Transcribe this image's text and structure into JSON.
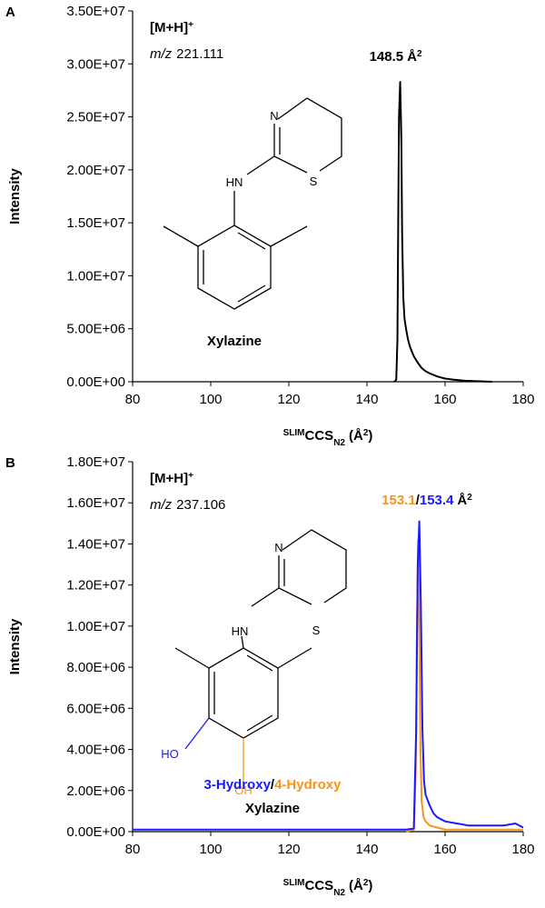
{
  "chart_data": [
    {
      "type": "line",
      "panel": "A",
      "ion": {
        "text": "[M+H]",
        "sup": "+"
      },
      "mz": {
        "label": "m/z",
        "value": "221.111"
      },
      "peak_label": {
        "value": 148.5,
        "unit": "Å",
        "unit_sup": "2"
      },
      "compound": "Xylazine",
      "structure": {
        "atoms": [
          "N",
          "HN",
          "S"
        ]
      },
      "ylabel": "Intensity",
      "xlabel": {
        "sup": "SLIM",
        "main": "CCS",
        "sub": "N2",
        "unit": "(Å",
        "unit_sup": "2",
        "close": ")"
      },
      "xlim": [
        80,
        180
      ],
      "xticks": [
        80,
        100,
        120,
        140,
        160,
        180
      ],
      "ylim": [
        0,
        35000000
      ],
      "yticks": [
        {
          "value": 0,
          "label": "0.00E+00"
        },
        {
          "value": 5000000,
          "label": "5.00E+06"
        },
        {
          "value": 10000000,
          "label": "1.00E+07"
        },
        {
          "value": 15000000,
          "label": "1.50E+07"
        },
        {
          "value": 20000000,
          "label": "2.00E+07"
        },
        {
          "value": 25000000,
          "label": "2.50E+07"
        },
        {
          "value": 30000000,
          "label": "3.00E+07"
        },
        {
          "value": 35000000,
          "label": "3.50E+07"
        }
      ],
      "series": [
        {
          "color": "#000000",
          "x": [
            147,
            147.5,
            147.8,
            148.0,
            148.2,
            148.5,
            148.8,
            149.0,
            149.3,
            149.6,
            150,
            150.5,
            151,
            152,
            153,
            154,
            155,
            156,
            158,
            160,
            162,
            165,
            168,
            172
          ],
          "values": [
            0,
            200000,
            4000000,
            15000000,
            25000000,
            28300000,
            23000000,
            14000000,
            8000000,
            6000000,
            5000000,
            4000000,
            3300000,
            2400000,
            1800000,
            1300000,
            1000000,
            800000,
            500000,
            300000,
            200000,
            100000,
            50000,
            0
          ]
        }
      ]
    },
    {
      "type": "line",
      "panel": "B",
      "ion": {
        "text": "[M+H]",
        "sup": "+"
      },
      "mz": {
        "label": "m/z",
        "value": "237.106"
      },
      "peak_label": {
        "separator": "/",
        "unit": "Å",
        "unit_sup": "2"
      },
      "name_separator": "/",
      "compound": "Xylazine",
      "structure": {
        "atoms": [
          "N",
          "HN",
          "S",
          "HO",
          "OH"
        ]
      },
      "ylabel": "Intensity",
      "xlabel": {
        "sup": "SLIM",
        "main": "CCS",
        "sub": "N2",
        "unit": "(Å",
        "unit_sup": "2",
        "close": ")"
      },
      "xlim": [
        80,
        180
      ],
      "xticks": [
        80,
        100,
        120,
        140,
        160,
        180
      ],
      "ylim": [
        0,
        18000000
      ],
      "yticks": [
        {
          "value": 0,
          "label": "0.00E+00"
        },
        {
          "value": 2000000,
          "label": "2.00E+06"
        },
        {
          "value": 4000000,
          "label": "4.00E+06"
        },
        {
          "value": 6000000,
          "label": "6.00E+06"
        },
        {
          "value": 8000000,
          "label": "8.00E+06"
        },
        {
          "value": 10000000,
          "label": "1.00E+07"
        },
        {
          "value": 12000000,
          "label": "1.20E+07"
        },
        {
          "value": 14000000,
          "label": "1.40E+07"
        },
        {
          "value": 16000000,
          "label": "1.60E+07"
        },
        {
          "value": 18000000,
          "label": "1.80E+07"
        }
      ],
      "series": [
        {
          "name": "3-Hydroxy",
          "color": "#1a1aff",
          "peak": 153.4,
          "x": [
            80,
            100,
            120,
            140,
            150,
            152,
            152.6,
            153.0,
            153.4,
            153.8,
            154.2,
            154.6,
            155,
            156,
            157,
            158,
            160,
            163,
            166,
            170,
            175,
            178,
            180
          ],
          "values": [
            100000,
            100000,
            100000,
            100000,
            100000,
            150000,
            5000000,
            13000000,
            15100000,
            11000000,
            5000000,
            2500000,
            1800000,
            1300000,
            900000,
            700000,
            500000,
            400000,
            300000,
            300000,
            300000,
            400000,
            200000
          ]
        },
        {
          "name": "4-Hydroxy",
          "color": "#f7941d",
          "peak": 153.1,
          "x": [
            150,
            152,
            152.5,
            152.8,
            153.1,
            153.4,
            153.7,
            154,
            154.5,
            155,
            156,
            158,
            160,
            165,
            170,
            175,
            180
          ],
          "values": [
            0,
            100000,
            3000000,
            10000000,
            14200000,
            10000000,
            4000000,
            1500000,
            700000,
            500000,
            300000,
            200000,
            100000,
            100000,
            100000,
            100000,
            100000
          ]
        }
      ]
    }
  ]
}
